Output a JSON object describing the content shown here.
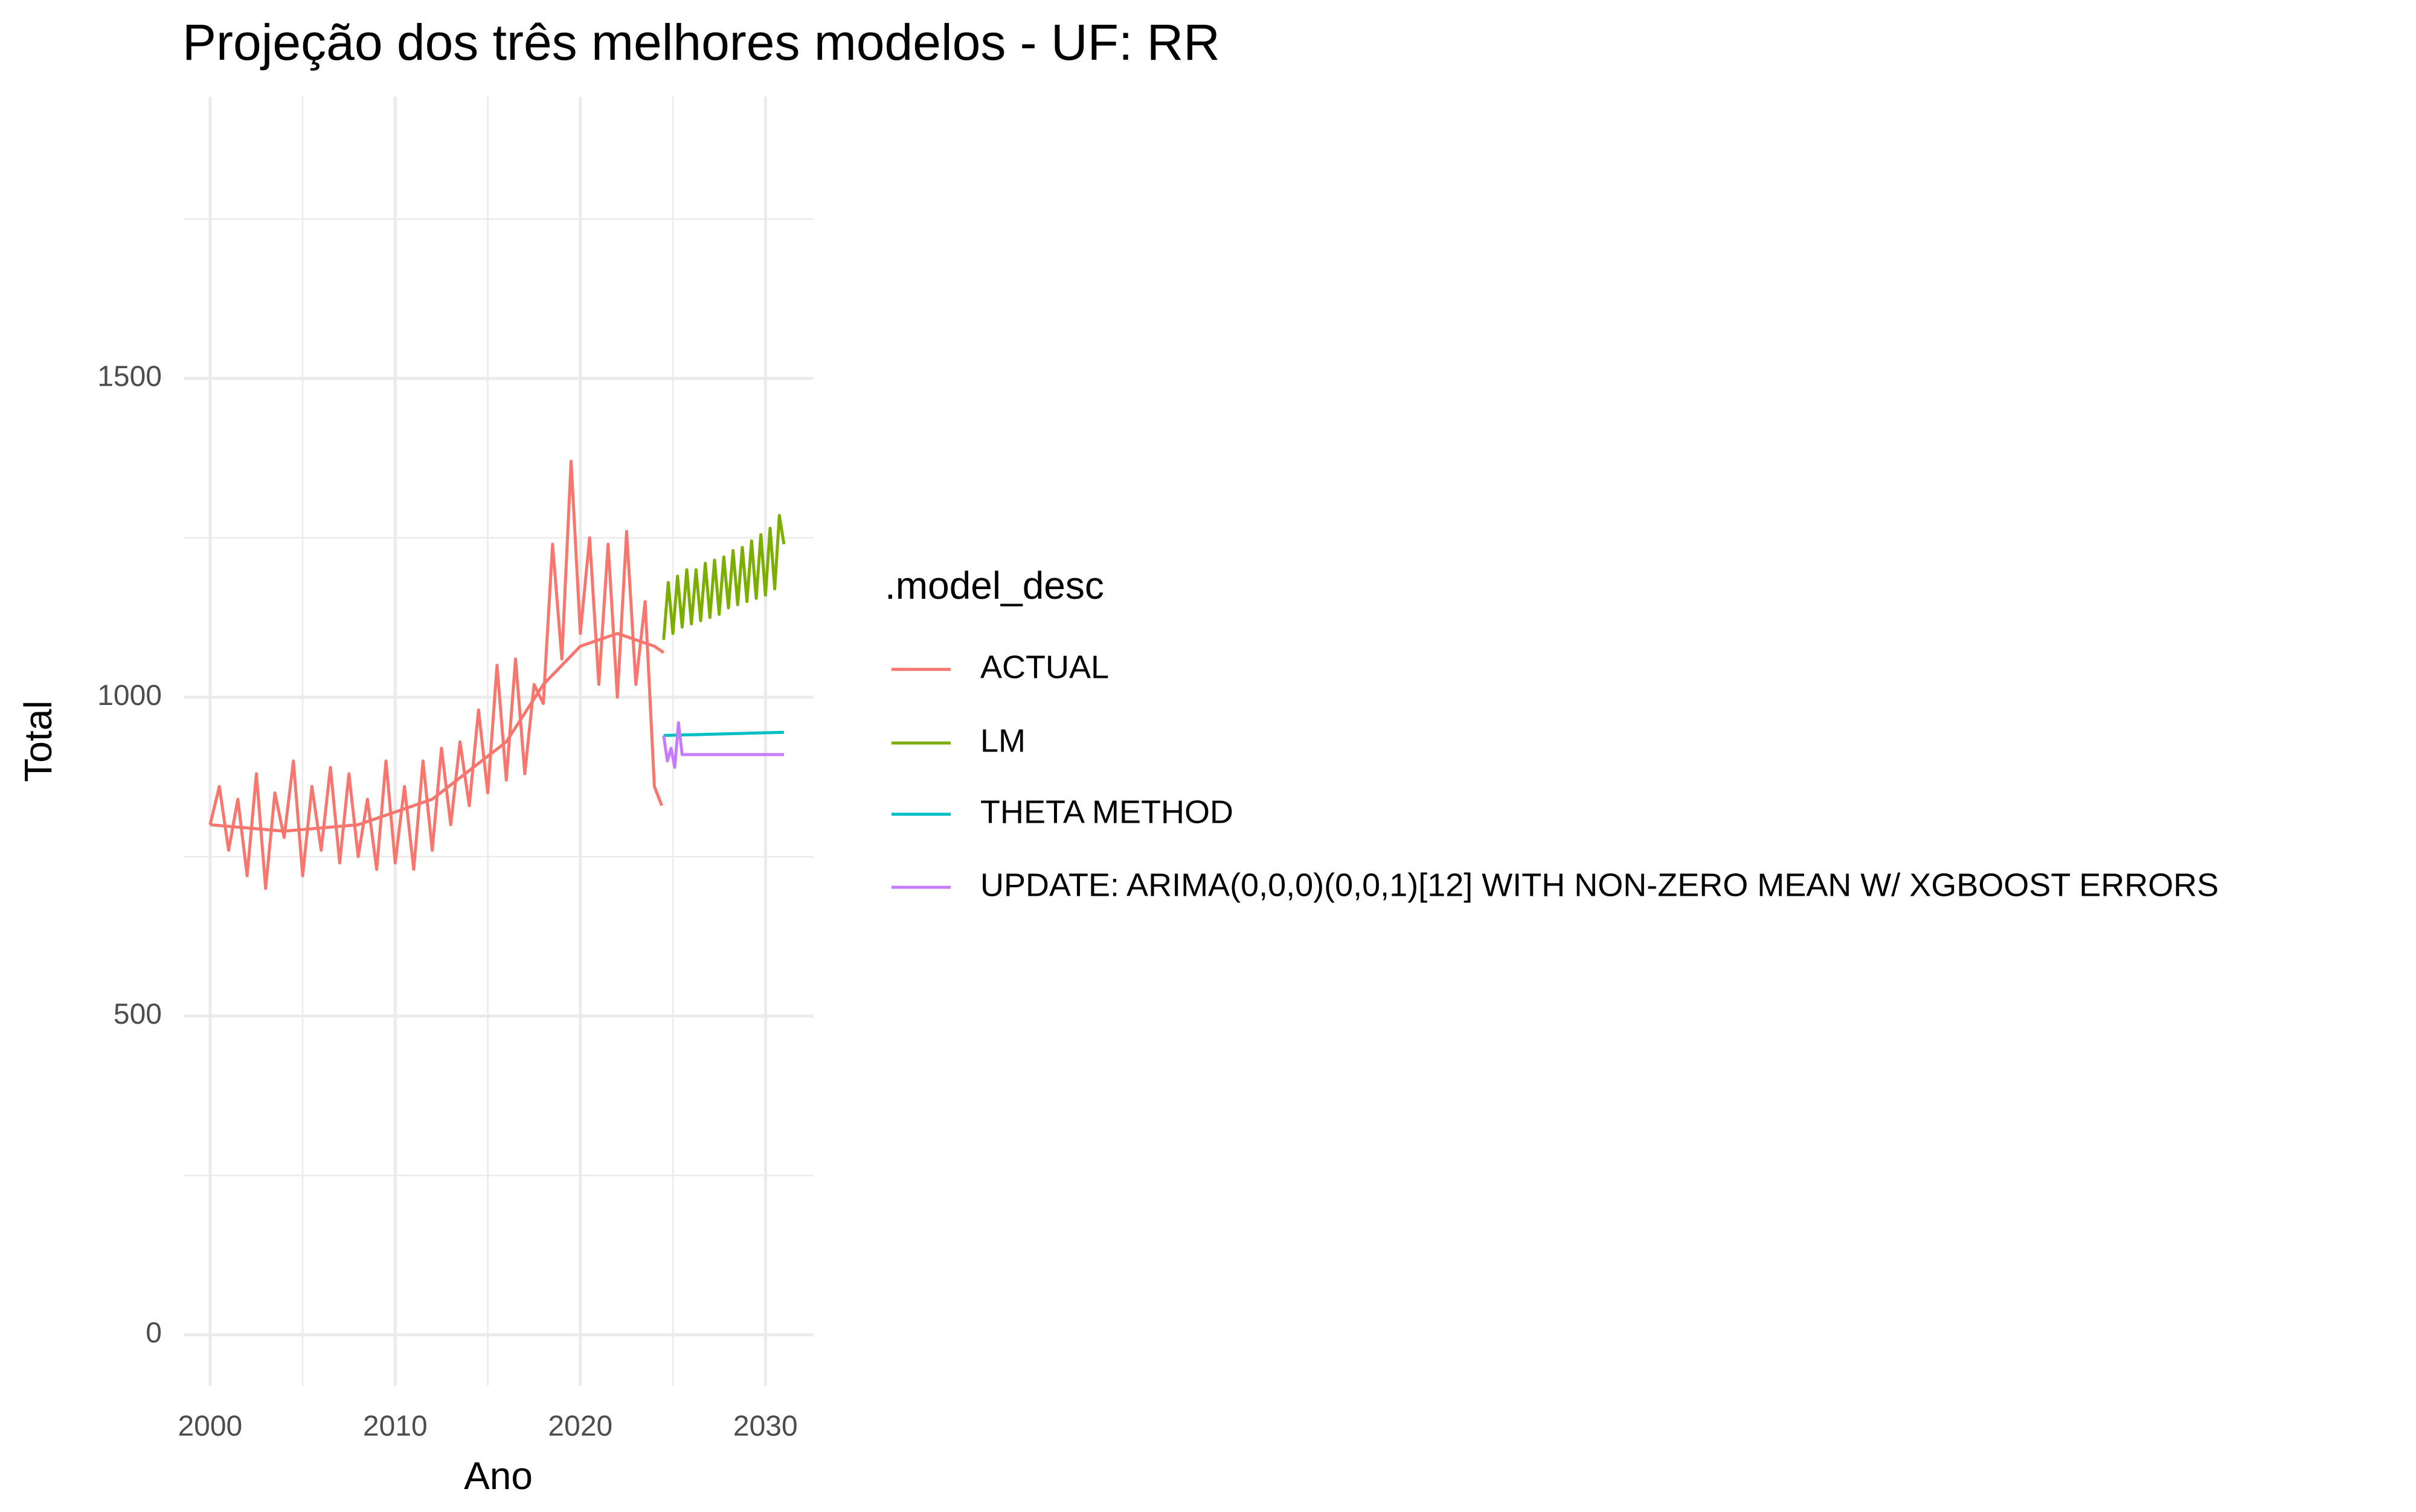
{
  "chart_data": {
    "type": "line",
    "title": "Projeção dos três melhores modelos - UF: RR",
    "x_label": "Ano",
    "y_label": "Total",
    "legend_title": ".model_desc",
    "legend_position": "right",
    "grid": true,
    "minor_grid": true,
    "xlim": [
      1998.57,
      2032.6
    ],
    "ylim": [
      -80,
      1942
    ],
    "xticks": [
      2000,
      2010,
      2020,
      2030
    ],
    "yticks": [
      0,
      500,
      1000,
      1500
    ],
    "series": [
      {
        "name": "ACTUAL",
        "color": "#F8766D",
        "x": [
          2000,
          2000.5,
          2001,
          2001.5,
          2002,
          2002.5,
          2003,
          2003.5,
          2004,
          2004.5,
          2005,
          2005.5,
          2006,
          2006.5,
          2007,
          2007.5,
          2008,
          2008.5,
          2009,
          2009.5,
          2010,
          2010.5,
          2011,
          2011.5,
          2012,
          2012.5,
          2013,
          2013.5,
          2014,
          2014.5,
          2015,
          2015.5,
          2016,
          2016.5,
          2017,
          2017.5,
          2018,
          2018.5,
          2019,
          2019.5,
          2020,
          2020.5,
          2021,
          2021.5,
          2022,
          2022.5,
          2023,
          2023.5,
          2024,
          2024.4
        ],
        "values": [
          800,
          860,
          760,
          840,
          720,
          880,
          700,
          850,
          780,
          900,
          720,
          860,
          760,
          890,
          740,
          880,
          750,
          840,
          730,
          900,
          740,
          860,
          730,
          900,
          760,
          920,
          800,
          930,
          830,
          980,
          850,
          1050,
          870,
          1060,
          880,
          1020,
          990,
          1240,
          1060,
          1370,
          1100,
          1250,
          1020,
          1240,
          1000,
          1260,
          1020,
          1150,
          860,
          830
        ],
        "trend_x": [
          2000,
          2004,
          2008,
          2012,
          2016,
          2018,
          2020,
          2022,
          2024,
          2024.5
        ],
        "trend": [
          800,
          790,
          800,
          840,
          930,
          1020,
          1080,
          1100,
          1080,
          1070
        ]
      },
      {
        "name": "LM",
        "color": "#7CAE00",
        "x": [
          2024.5,
          2024.75,
          2025,
          2025.25,
          2025.5,
          2025.75,
          2026,
          2026.25,
          2026.5,
          2026.75,
          2027,
          2027.25,
          2027.5,
          2027.75,
          2028,
          2028.25,
          2028.5,
          2028.75,
          2029,
          2029.25,
          2029.5,
          2029.75,
          2030,
          2030.25,
          2030.5,
          2030.75,
          2031
        ],
        "values": [
          1090,
          1180,
          1100,
          1190,
          1110,
          1200,
          1115,
          1200,
          1120,
          1210,
          1125,
          1215,
          1130,
          1220,
          1140,
          1230,
          1145,
          1235,
          1150,
          1245,
          1155,
          1255,
          1160,
          1265,
          1170,
          1285,
          1240
        ]
      },
      {
        "name": "THETA METHOD",
        "color": "#00BFC4",
        "x": [
          2024.5,
          2031
        ],
        "values": [
          940,
          945
        ]
      },
      {
        "name": "UPDATE: ARIMA(0,0,0)(0,0,1)[12] WITH NON-ZERO MEAN W/ XGBOOST ERRORS",
        "color": "#C77CFF",
        "x": [
          2024.5,
          2024.7,
          2024.9,
          2025.1,
          2025.3,
          2025.5,
          2026,
          2031
        ],
        "values": [
          940,
          900,
          920,
          890,
          960,
          910,
          910,
          910
        ]
      }
    ]
  }
}
